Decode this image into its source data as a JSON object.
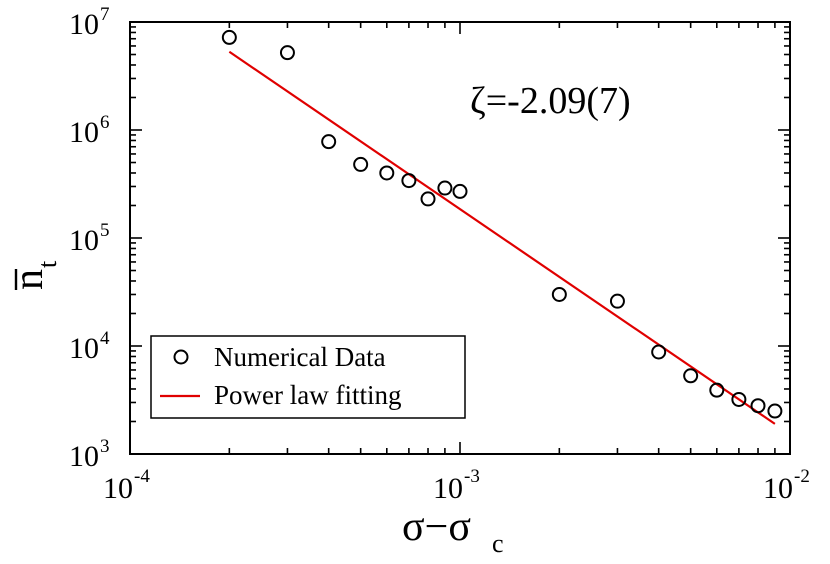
{
  "chart_data": {
    "type": "scatter",
    "xscale": "log",
    "yscale": "log",
    "xlim": [
      0.0001,
      0.01
    ],
    "ylim": [
      1000,
      10000000
    ],
    "grid": false,
    "legend_position": "bottom-left",
    "x_ticks": [
      {
        "base": "10",
        "exp": "-4"
      },
      {
        "base": "10",
        "exp": "-3"
      },
      {
        "base": "10",
        "exp": "-2"
      }
    ],
    "y_ticks": [
      {
        "base": "10",
        "exp": "3"
      },
      {
        "base": "10",
        "exp": "4"
      },
      {
        "base": "10",
        "exp": "5"
      },
      {
        "base": "10",
        "exp": "6"
      },
      {
        "base": "10",
        "exp": "7"
      }
    ],
    "xlabel": {
      "main": "σ−σ",
      "sub": "c"
    },
    "ylabel": {
      "main": "n",
      "sub": "t"
    },
    "annotation": "ζ=-2.09(7)",
    "series": [
      {
        "name": "Numerical Data",
        "kind": "scatter",
        "marker": "open-circle",
        "color": "#000000",
        "x": [
          0.0002,
          0.0003,
          0.0004,
          0.0005,
          0.0006,
          0.0007,
          0.0008,
          0.0009,
          0.001,
          0.002,
          0.003,
          0.004,
          0.005,
          0.006,
          0.007,
          0.008,
          0.009
        ],
        "y": [
          7200000,
          5200000,
          780000,
          480000,
          400000,
          340000,
          230000,
          290000,
          270000,
          30000,
          26000,
          8800,
          5300,
          3900,
          3200,
          2800,
          2500
        ]
      },
      {
        "name": "Power law fitting",
        "kind": "line",
        "color": "#e00000",
        "x": [
          0.0002,
          0.009
        ],
        "y": [
          5300000,
          1900
        ]
      }
    ]
  }
}
